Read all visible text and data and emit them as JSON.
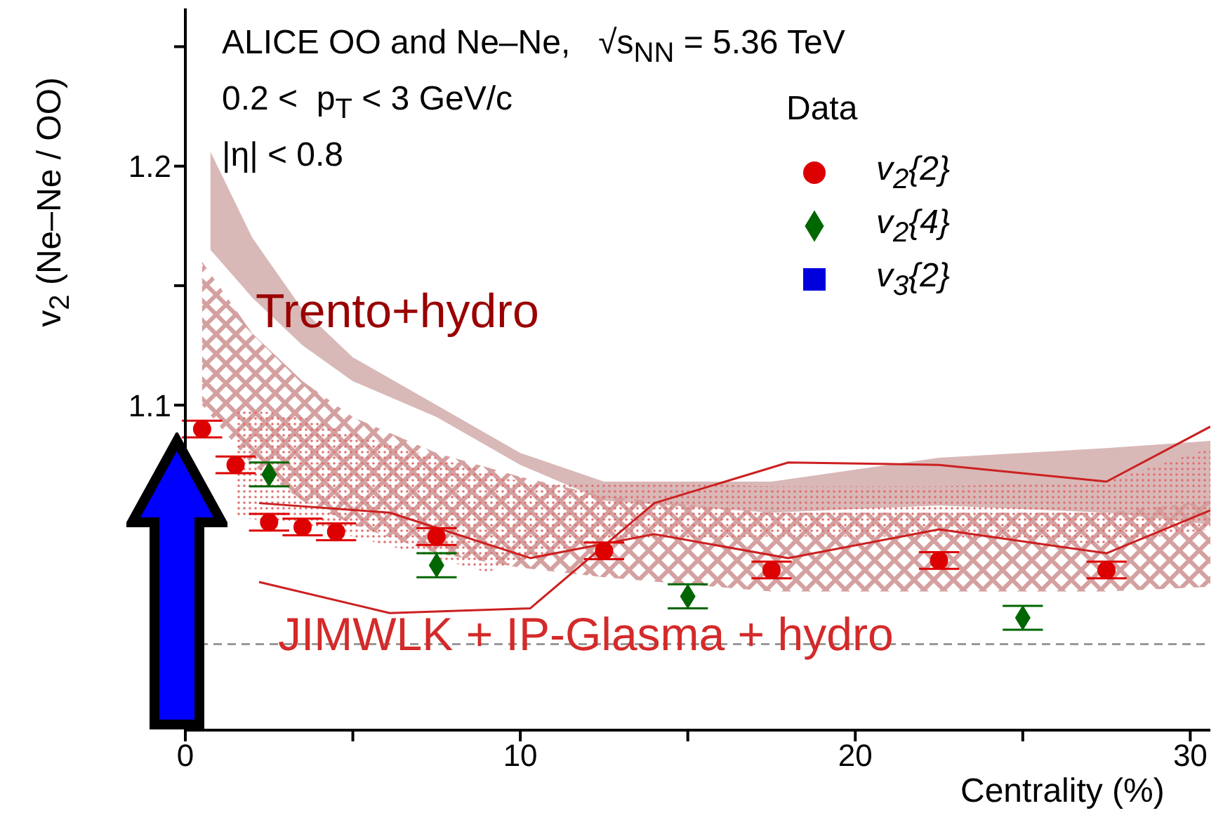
{
  "chart_data": {
    "type": "scatter",
    "xlabel": "Centrality (%)",
    "ylabel": "v$_{2}$ (Ne–Ne / OO)",
    "legend_title": "Data",
    "legend": "top right",
    "annotations": [
      "ALICE OO and Ne–Ne,   √s$_{NN}$ = 5.36 TeV",
      "0.2 <  p$_{T}$ < 3 GeV/c",
      "|η| < 0.8",
      "Trento+hydro"
    ],
    "xlim": [
      0,
      30.6
    ],
    "xticks": [
      0,
      {
        "value": 5,
        "label": null
      },
      10,
      {
        "value": 15,
        "label": null
      },
      20,
      {
        "value": 25,
        "label": null
      },
      30
    ],
    "ylim": [
      0.964,
      1.266
    ],
    "yticks": [
      {
        "value": 1.0,
        "label": null
      },
      {
        "value": 1.05,
        "label": null
      },
      1.1,
      {
        "value": 1.15,
        "label": null
      },
      1.2,
      {
        "value": 1.25,
        "label": null
      }
    ],
    "ref_lines": [
      {
        "axis": "y",
        "value": 1.0,
        "color": "#999999",
        "line_style": "dashed"
      }
    ],
    "series": [
      {
        "type": "area",
        "color": "#d9b8b8",
        "x": [
          0.75,
          2,
          3.5,
          5,
          7.5,
          10,
          12.5,
          17.5,
          22.5,
          27.5,
          30.6
        ],
        "values": [
          null,
          null,
          null,
          null,
          null,
          null,
          null,
          null,
          null,
          null,
          null
        ],
        "upper": [
          1.206,
          1.17,
          1.14,
          1.12,
          1.1,
          1.08,
          1.068,
          1.068,
          1.078,
          1.082,
          1.085
        ],
        "lower": [
          1.165,
          1.145,
          1.125,
          1.11,
          1.095,
          1.075,
          1.06,
          1.055,
          1.058,
          1.055,
          1.05
        ]
      },
      {
        "type": "area",
        "color": "#d4a0a0",
        "x": [
          0.5,
          2,
          3.5,
          5,
          7.5,
          10,
          12.5,
          17.5,
          22.5,
          27.5,
          30.6
        ],
        "values": [
          null,
          null,
          null,
          null,
          null,
          null,
          null,
          null,
          null,
          null,
          null
        ],
        "upper": [
          1.16,
          1.13,
          1.11,
          1.095,
          1.08,
          1.07,
          1.062,
          1.055,
          1.055,
          1.055,
          1.06
        ],
        "lower": [
          1.1,
          1.075,
          1.06,
          1.05,
          1.038,
          1.032,
          1.028,
          1.022,
          1.022,
          1.022,
          1.024
        ]
      },
      {
        "type": "area",
        "color": "#e07070",
        "x": [
          1.5,
          3.5,
          5,
          7.5,
          9,
          10,
          12.5,
          17.5,
          22.5,
          27.5,
          30.6
        ],
        "values": [
          null,
          null,
          null,
          null,
          null,
          null,
          null,
          null,
          null,
          null,
          null
        ],
        "upper": [
          1.099,
          1.095,
          1.088,
          1.078,
          1.072,
          1.068,
          1.068,
          1.066,
          1.066,
          1.068,
          1.082
        ],
        "lower": [
          1.053,
          1.05,
          1.045,
          1.036,
          1.03,
          1.035,
          1.044,
          1.045,
          1.045,
          1.042,
          1.048
        ]
      },
      {
        "type": "line",
        "name": "JIMWLK + IP-Glasma + hydro",
        "color": "#cc2020",
        "x": [
          2.2,
          6.1,
          10.3,
          14,
          18,
          22.5,
          27.5,
          30.6
        ],
        "values": [
          1.059,
          1.055,
          1.036,
          1.046,
          1.036,
          1.048,
          1.038,
          1.056
        ]
      },
      {
        "type": "line",
        "color": "#cc2020",
        "x": [
          2.2,
          6.1,
          10.3,
          14,
          18,
          22.5,
          27.5,
          30.6
        ],
        "values": [
          1.026,
          1.013,
          1.015,
          1.059,
          1.076,
          1.075,
          1.068,
          1.091
        ]
      },
      {
        "name": "v$_{2}${2}",
        "color": "#dd0000",
        "marker": "circle",
        "x": [
          0.5,
          1.5,
          2.5,
          3.5,
          4.5,
          7.5,
          12.5,
          17.5,
          22.5,
          27.5
        ],
        "values": [
          1.09,
          1.075,
          1.051,
          1.049,
          1.047,
          1.045,
          1.039,
          1.031,
          1.035,
          1.031
        ],
        "errors": [
          0.0035,
          0.0035,
          0.0035,
          0.0035,
          0.0035,
          0.0035,
          0.0035,
          0.0035,
          0.0035,
          0.0035
        ]
      },
      {
        "name": "v$_{2}${4}",
        "color": "#006600",
        "marker": "diamond",
        "x": [
          2.5,
          7.5,
          15,
          25
        ],
        "values": [
          1.071,
          1.033,
          1.02,
          1.011
        ],
        "errors": [
          0.005,
          0.005,
          0.005,
          0.005
        ]
      },
      {
        "name": "v$_{3}${2}",
        "color": "#0000dd",
        "marker": "square"
      }
    ]
  }
}
